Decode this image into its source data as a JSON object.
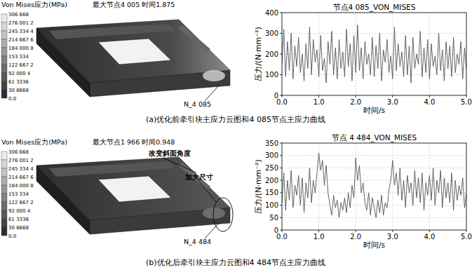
{
  "chart_data": [
    {
      "type": "line",
      "title": "节点4 085_VON_MISES",
      "x_label": "时间/s",
      "y_label": "压力/(N·mm⁻²)",
      "x": [
        0,
        0.05,
        0.1,
        0.15,
        0.2,
        0.25,
        0.3,
        0.35,
        0.4,
        0.45,
        0.5,
        0.55,
        0.6,
        0.65,
        0.7,
        0.75,
        0.8,
        0.85,
        0.9,
        0.95,
        1,
        1.05,
        1.1,
        1.15,
        1.2,
        1.25,
        1.3,
        1.35,
        1.4,
        1.45,
        1.5,
        1.55,
        1.6,
        1.65,
        1.7,
        1.75,
        1.8,
        1.85,
        1.9,
        1.95,
        2,
        2.05,
        2.1,
        2.15,
        2.2,
        2.25,
        2.3,
        2.35,
        2.4,
        2.45,
        2.5,
        2.55,
        2.6,
        2.65,
        2.7,
        2.75,
        2.8,
        2.85,
        2.9,
        2.95,
        3,
        3.05,
        3.1,
        3.15,
        3.2,
        3.25,
        3.3,
        3.35,
        3.4,
        3.45,
        3.5,
        3.55,
        3.6,
        3.65,
        3.7,
        3.75,
        3.8,
        3.85,
        3.9,
        3.95,
        4,
        4.05,
        4.1,
        4.15,
        4.2,
        4.25,
        4.3,
        4.35,
        4.4,
        4.45,
        4.5,
        4.55,
        4.6,
        4.65,
        4.7,
        4.75,
        4.8,
        4.85,
        4.9,
        4.95,
        5
      ],
      "values": [
        150,
        320,
        90,
        260,
        120,
        300,
        80,
        240,
        140,
        280,
        110,
        200,
        70,
        250,
        130,
        330,
        100,
        270,
        160,
        220,
        90,
        290,
        120,
        180,
        60,
        260,
        150,
        310,
        100,
        230,
        80,
        270,
        130,
        210,
        90,
        320,
        140,
        250,
        70,
        290,
        110,
        340,
        120,
        230,
        80,
        260,
        150,
        200,
        100,
        280,
        90,
        240,
        130,
        300,
        70,
        220,
        160,
        270,
        110,
        190,
        80,
        330,
        120,
        250,
        140,
        210,
        90,
        290,
        100,
        240,
        60,
        280,
        130,
        200,
        150,
        310,
        90,
        230,
        110,
        270,
        80,
        250,
        140,
        190,
        100,
        300,
        120,
        220,
        70,
        260,
        130,
        240,
        90,
        280,
        110,
        200,
        150,
        260,
        80,
        230,
        120
      ],
      "color": "#555555",
      "xlim": [
        0,
        5
      ],
      "xticks": [
        {
          "value": 0,
          "label": "0.0"
        },
        {
          "value": 1,
          "label": "1.0"
        },
        {
          "value": 2,
          "label": "2.0"
        },
        {
          "value": 3,
          "label": "3.0"
        },
        {
          "value": 4,
          "label": "4.0"
        },
        {
          "value": 5,
          "label": "5.0"
        }
      ],
      "ylim": [
        0,
        400
      ],
      "yticks": [
        0,
        100,
        200,
        300,
        400
      ],
      "grid": true
    },
    {
      "type": "line",
      "title": "节点 4 484_VON_MISES",
      "x_label": "时间/s",
      "y_label": "压力/(N·mm⁻²)",
      "x": [
        0,
        0.05,
        0.1,
        0.15,
        0.2,
        0.25,
        0.3,
        0.35,
        0.4,
        0.45,
        0.5,
        0.55,
        0.6,
        0.65,
        0.7,
        0.75,
        0.8,
        0.85,
        0.9,
        0.95,
        1,
        1.05,
        1.1,
        1.15,
        1.2,
        1.25,
        1.3,
        1.35,
        1.4,
        1.45,
        1.5,
        1.55,
        1.6,
        1.65,
        1.7,
        1.75,
        1.8,
        1.85,
        1.9,
        1.95,
        2,
        2.05,
        2.1,
        2.15,
        2.2,
        2.25,
        2.3,
        2.35,
        2.4,
        2.45,
        2.5,
        2.55,
        2.6,
        2.65,
        2.7,
        2.75,
        2.8,
        2.85,
        2.9,
        2.95,
        3,
        3.05,
        3.1,
        3.15,
        3.2,
        3.25,
        3.3,
        3.35,
        3.4,
        3.45,
        3.5,
        3.55,
        3.6,
        3.65,
        3.7,
        3.75,
        3.8,
        3.85,
        3.9,
        3.95,
        4,
        4.05,
        4.1,
        4.15,
        4.2,
        4.25,
        4.3,
        4.35,
        4.4,
        4.45,
        4.5,
        4.55,
        4.6,
        4.65,
        4.7,
        4.75,
        4.8,
        4.85,
        4.9,
        4.95,
        5
      ],
      "values": [
        110,
        230,
        80,
        200,
        120,
        240,
        90,
        180,
        140,
        220,
        100,
        210,
        70,
        190,
        130,
        250,
        110,
        200,
        150,
        230,
        310,
        240,
        280,
        180,
        260,
        150,
        100,
        60,
        140,
        90,
        120,
        50,
        110,
        80,
        130,
        70,
        150,
        90,
        180,
        130,
        290,
        200,
        260,
        150,
        190,
        110,
        80,
        150,
        60,
        130,
        90,
        50,
        120,
        70,
        140,
        60,
        110,
        90,
        160,
        200,
        280,
        180,
        230,
        140,
        250,
        120,
        200,
        90,
        220,
        150,
        190,
        100,
        240,
        130,
        210,
        110,
        230,
        80,
        190,
        140,
        220,
        120,
        250,
        100,
        200,
        150,
        240,
        90,
        210,
        130,
        190,
        110,
        230,
        80,
        200,
        120,
        180,
        140,
        210,
        90,
        150
      ],
      "color": "#555555",
      "xlim": [
        0,
        5
      ],
      "xticks": [
        {
          "value": 0,
          "label": "0.0"
        },
        {
          "value": 1,
          "label": "1.0"
        },
        {
          "value": 2,
          "label": "2.0"
        },
        {
          "value": 3,
          "label": "3.0"
        },
        {
          "value": 4,
          "label": "4.0"
        },
        {
          "value": 5,
          "label": "5.0"
        }
      ],
      "ylim": [
        0,
        350
      ],
      "yticks": [
        0,
        50,
        100,
        150,
        200,
        250,
        300,
        350
      ],
      "grid": true
    }
  ],
  "panels": [
    {
      "legend_title": "Von Mises应力(MPa)",
      "max_info": "最大节点4 005  时间1.875",
      "legend_labels": [
        "306 668",
        "276 001 2",
        "245 334 4",
        "214 667 6",
        "184 000 8",
        "153 334",
        "122 667 2",
        "92 000 4",
        "61 3336",
        "30 6668",
        "0.0"
      ],
      "node_label": "N_4 085",
      "annotations": [],
      "caption": "(a)优化前牵引块主应力云图和4 085节点主应力曲线"
    },
    {
      "legend_title": "Von Mises应力(MPa)",
      "max_info": "最大节点1 966  时间0.948",
      "legend_labels": [
        "306 668",
        "276 001 2",
        "245 334 4",
        "214 667 6",
        "184 000 8",
        "153 334",
        "122 667 2",
        "92 000 4",
        "61 3336",
        "30 6668",
        "0.0"
      ],
      "node_label": "N_4 484",
      "annotations": [
        "改变斜面角度",
        "加大尺寸"
      ],
      "caption": "(b)优化后牵引块主应力云图和4 484节点主应力曲线"
    }
  ]
}
